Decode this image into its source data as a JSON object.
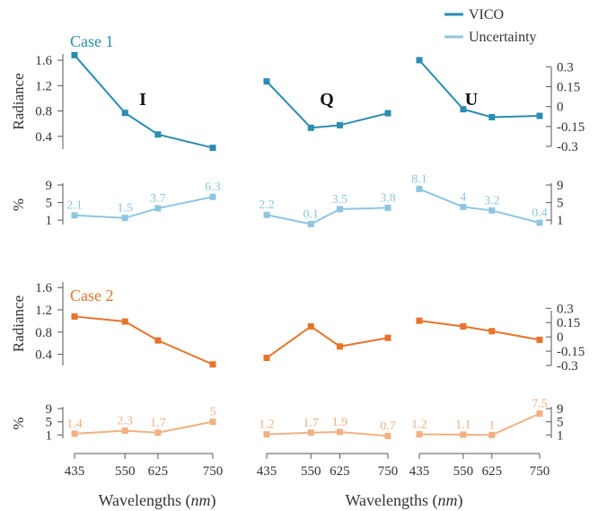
{
  "chart_data": {
    "type": "line",
    "legend": {
      "placement": "top-right",
      "entries": [
        {
          "label": "VICO",
          "color": "#2a8cb0"
        },
        {
          "label": "Uncertainty",
          "color": "#8ec6e0"
        }
      ]
    },
    "xlabel": "Wavelengths",
    "xlabel_unit": "nm",
    "x": [
      435,
      550,
      625,
      750
    ],
    "x_tick_labels": [
      "435",
      "550",
      "625",
      "750"
    ],
    "radiance_label": "Radiance",
    "percent_label": "%",
    "I_ylim": [
      0.2,
      1.7
    ],
    "I_ticks": [
      "1.6",
      "1.2",
      "0.8",
      "0.4"
    ],
    "QU_ylim": [
      -0.3,
      0.35
    ],
    "QU_ticks": [
      "0.3",
      "0.15",
      "0",
      "-0.15",
      "-0.3"
    ],
    "pct_ylim": [
      0,
      9
    ],
    "pct_ticks": [
      "9",
      "5",
      "1"
    ],
    "cases": [
      {
        "label": "Case 1",
        "color": "#2a8cb0",
        "unc_color": "#8ec6e0",
        "panels": [
          {
            "name": "I",
            "values": [
              1.68,
              0.77,
              0.43,
              0.22
            ],
            "uncertainty": [
              2.1,
              1.5,
              3.7,
              6.3
            ],
            "unc_labels": [
              "2.1",
              "1.5",
              "3.7",
              "6.3"
            ]
          },
          {
            "name": "Q",
            "values": [
              0.19,
              -0.16,
              -0.14,
              -0.05
            ],
            "uncertainty": [
              2.2,
              0.1,
              3.5,
              3.8
            ],
            "unc_labels": [
              "2.2",
              "0.1",
              "3.5",
              "3.8"
            ]
          },
          {
            "name": "U",
            "values": [
              0.35,
              -0.02,
              -0.08,
              -0.07
            ],
            "uncertainty": [
              8.1,
              4,
              3.2,
              0.4
            ],
            "unc_labels": [
              "8.1",
              "4",
              "3.2",
              "0.4"
            ]
          }
        ]
      },
      {
        "label": "Case 2",
        "color": "#e8732a",
        "unc_color": "#f2b083",
        "panels": [
          {
            "name": "I",
            "values": [
              1.08,
              0.99,
              0.65,
              0.22
            ],
            "uncertainty": [
              1.4,
              2.3,
              1.7,
              5
            ],
            "unc_labels": [
              "1.4",
              "2.3",
              "1.7",
              "5"
            ]
          },
          {
            "name": "Q",
            "values": [
              -0.22,
              0.11,
              -0.1,
              -0.01
            ],
            "uncertainty": [
              1.2,
              1.7,
              1.9,
              0.7
            ],
            "unc_labels": [
              "1.2",
              "1.7",
              "1.9",
              "0.7"
            ]
          },
          {
            "name": "U",
            "values": [
              0.17,
              0.11,
              0.06,
              -0.03
            ],
            "uncertainty": [
              1.2,
              1.1,
              1,
              7.5
            ],
            "unc_labels": [
              "1.2",
              "1.1",
              "1",
              "7.5"
            ]
          }
        ]
      }
    ]
  }
}
